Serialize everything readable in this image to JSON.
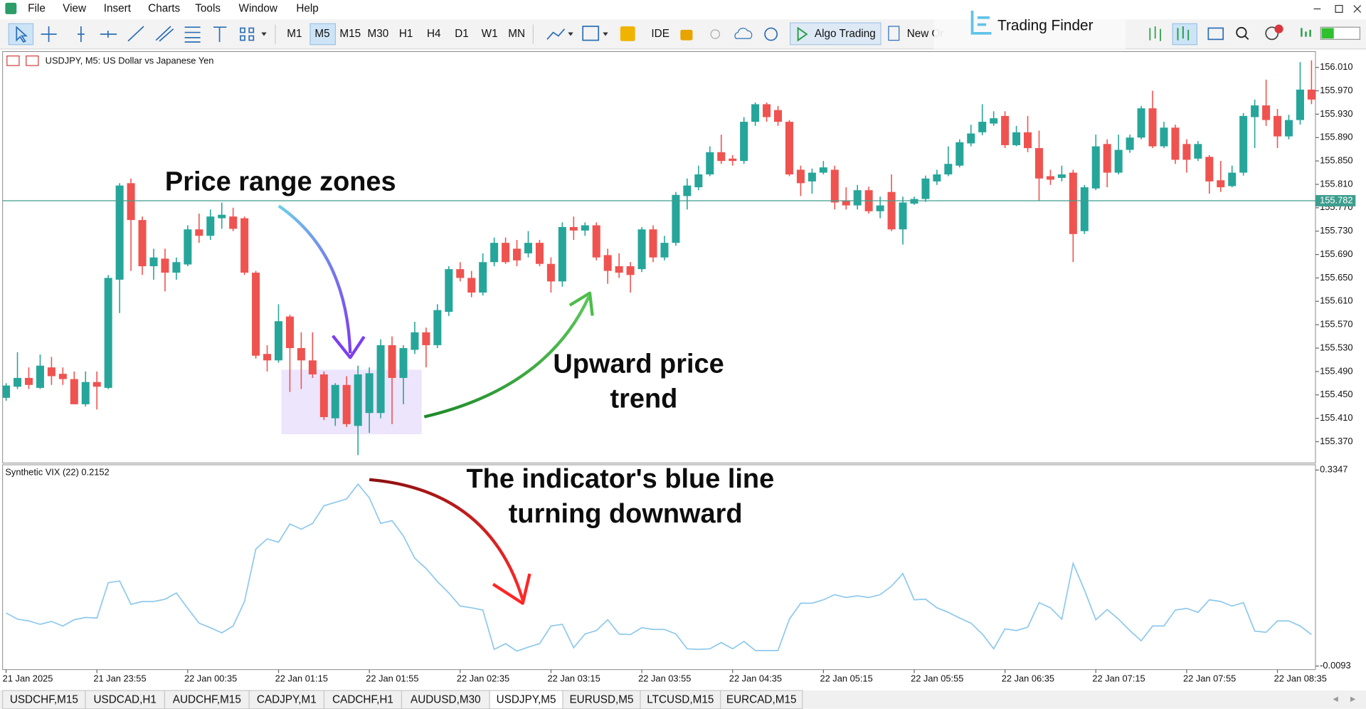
{
  "menu": [
    "File",
    "View",
    "Insert",
    "Charts",
    "Tools",
    "Window",
    "Help"
  ],
  "toolbar": {
    "timeframes": [
      "M1",
      "M5",
      "M15",
      "M30",
      "H1",
      "H4",
      "D1",
      "W1",
      "MN"
    ],
    "ide": "IDE",
    "algo_trading": "Algo Trading",
    "new_order": "New Or"
  },
  "watermark": "Trading Finder",
  "tabs": [
    "USDCHF,M15",
    "USDCAD,H1",
    "AUDCHF,M15",
    "CADJPY,M1",
    "CADCHF,H1",
    "AUDUSD,M30",
    "USDJPY,M5",
    "EURUSD,M5",
    "LTCUSD,M15",
    "EURCAD,M15"
  ],
  "annotations": {
    "price_range": "Price range zones",
    "upward": [
      "Upward price",
      "trend"
    ],
    "indicator": [
      "The indicator's blue line",
      "turning downward"
    ]
  },
  "chart_data": [
    {
      "type": "candlestick",
      "title": "USDJPY, M5:  US Dollar vs Japanese Yen",
      "categories": [
        "21 Jan 2025",
        null,
        null,
        null,
        null,
        null,
        null,
        null,
        "21 Jan 23:55",
        null,
        null,
        null,
        null,
        null,
        null,
        null,
        "22 Jan 00:35",
        null,
        null,
        null,
        null,
        null,
        null,
        null,
        "22 Jan 01:15",
        null,
        null,
        null,
        null,
        null,
        null,
        null,
        "22 Jan 01:55",
        null,
        null,
        null,
        null,
        null,
        null,
        null,
        "22 Jan 02:35",
        null,
        null,
        null,
        null,
        null,
        null,
        null,
        "22 Jan 03:15",
        null,
        null,
        null,
        null,
        null,
        null,
        null,
        "22 Jan 03:55",
        null,
        null,
        null,
        null,
        null,
        null,
        null,
        "22 Jan 04:35",
        null,
        null,
        null,
        null,
        null,
        null,
        null,
        "22 Jan 05:15",
        null,
        null,
        null,
        null,
        null,
        null,
        null,
        "22 Jan 05:55",
        null,
        null,
        null,
        null,
        null,
        null,
        null,
        "22 Jan 06:35",
        null,
        null,
        null,
        null,
        null,
        null,
        null,
        "22 Jan 07:15",
        null,
        null,
        null,
        null,
        null,
        null,
        null,
        "22 Jan 07:55",
        null,
        null,
        null,
        null,
        null,
        null,
        null,
        "22 Jan 08:35",
        null,
        null,
        null
      ],
      "open": [
        155.445,
        155.464,
        155.479,
        155.462,
        155.497,
        155.486,
        155.477,
        155.434,
        155.472,
        155.462,
        155.647,
        155.812,
        155.749,
        155.67,
        155.683,
        155.659,
        155.673,
        155.733,
        155.722,
        155.752,
        155.755,
        155.752,
        155.659,
        155.52,
        155.509,
        155.584,
        155.53,
        155.509,
        155.485,
        155.41,
        155.467,
        155.397,
        155.419,
        155.419,
        155.535,
        155.479,
        155.527,
        155.557,
        155.535,
        155.592,
        155.665,
        155.65,
        155.625,
        155.677,
        155.71,
        155.7,
        155.692,
        155.71,
        155.674,
        155.644,
        155.737,
        155.731,
        155.74,
        155.689,
        155.67,
        155.67,
        155.665,
        155.733,
        155.685,
        155.71,
        155.79,
        155.805,
        155.827,
        155.865,
        155.854,
        155.85,
        155.917,
        155.947,
        155.937,
        155.917,
        155.835,
        155.815,
        155.83,
        155.835,
        155.782,
        155.774,
        155.8,
        155.764,
        155.797,
        155.733,
        155.777,
        155.785,
        155.815,
        155.827,
        155.842,
        155.88,
        155.899,
        155.914,
        155.927,
        155.877,
        155.899,
        155.872,
        155.824,
        155.821,
        155.83,
        155.73,
        155.803,
        155.879,
        155.83,
        155.869,
        155.89,
        155.94,
        155.875,
        155.907,
        155.879,
        155.854,
        155.857,
        155.817,
        155.807,
        155.83,
        155.925,
        155.945,
        155.927,
        155.892,
        155.92,
        155.972
      ],
      "high": [
        155.47,
        155.523,
        155.497,
        155.519,
        155.515,
        155.497,
        155.49,
        155.49,
        155.49,
        155.655,
        155.812,
        155.82,
        155.755,
        155.7,
        155.7,
        155.685,
        155.74,
        155.76,
        155.767,
        155.779,
        155.77,
        155.755,
        155.662,
        155.535,
        155.605,
        155.587,
        155.557,
        155.557,
        155.49,
        155.47,
        155.482,
        155.5,
        155.497,
        155.545,
        155.55,
        155.535,
        155.575,
        155.565,
        155.605,
        155.67,
        155.677,
        155.662,
        155.692,
        155.719,
        155.719,
        155.715,
        155.73,
        155.715,
        155.685,
        155.745,
        155.755,
        155.745,
        155.745,
        155.7,
        155.692,
        155.677,
        155.737,
        155.74,
        155.722,
        155.797,
        155.82,
        155.842,
        155.875,
        155.895,
        155.86,
        155.925,
        155.95,
        155.95,
        155.944,
        155.92,
        155.842,
        155.837,
        155.85,
        155.842,
        155.805,
        155.809,
        155.806,
        155.789,
        155.827,
        155.789,
        155.789,
        155.825,
        155.835,
        155.875,
        155.887,
        155.912,
        155.947,
        155.935,
        155.935,
        155.91,
        155.927,
        155.902,
        155.835,
        155.842,
        155.835,
        155.809,
        155.895,
        155.887,
        155.895,
        155.895,
        155.944,
        155.97,
        155.917,
        155.912,
        155.887,
        155.884,
        155.86,
        155.85,
        155.842,
        155.932,
        155.955,
        155.989,
        155.939,
        155.929,
        156.019,
        156.022
      ],
      "low": [
        155.44,
        155.46,
        155.46,
        155.46,
        155.467,
        155.467,
        155.434,
        155.43,
        155.425,
        155.46,
        155.59,
        155.662,
        155.655,
        155.647,
        155.627,
        155.647,
        155.67,
        155.71,
        155.715,
        155.734,
        155.73,
        155.655,
        155.512,
        155.49,
        155.505,
        155.455,
        155.46,
        155.479,
        155.407,
        155.397,
        155.395,
        155.347,
        155.385,
        155.41,
        155.4,
        155.434,
        155.52,
        155.497,
        155.53,
        155.585,
        155.644,
        155.617,
        155.62,
        155.67,
        155.674,
        155.67,
        155.685,
        155.67,
        155.625,
        155.635,
        155.715,
        155.722,
        155.68,
        155.64,
        155.65,
        155.625,
        155.66,
        155.677,
        155.68,
        155.705,
        155.767,
        155.8,
        155.824,
        155.845,
        155.842,
        155.845,
        155.91,
        155.917,
        155.91,
        155.824,
        155.79,
        155.794,
        155.827,
        155.767,
        155.767,
        155.767,
        155.76,
        155.752,
        155.73,
        155.707,
        155.775,
        155.78,
        155.809,
        155.824,
        155.839,
        155.875,
        155.894,
        155.91,
        155.872,
        155.875,
        155.865,
        155.782,
        155.809,
        155.815,
        155.677,
        155.725,
        155.8,
        155.805,
        155.827,
        155.864,
        155.887,
        155.872,
        155.872,
        155.845,
        155.83,
        155.85,
        155.794,
        155.797,
        155.805,
        155.825,
        155.872,
        155.91,
        155.872,
        155.887,
        155.912,
        155.947
      ],
      "close": [
        155.466,
        155.479,
        155.467,
        155.5,
        155.482,
        155.477,
        155.434,
        155.472,
        155.464,
        155.65,
        155.808,
        155.749,
        155.67,
        155.685,
        155.659,
        155.677,
        155.733,
        155.722,
        155.755,
        155.758,
        155.734,
        155.659,
        155.517,
        155.509,
        155.576,
        155.53,
        155.509,
        155.485,
        155.412,
        155.467,
        155.4,
        155.485,
        155.487,
        155.535,
        155.479,
        155.53,
        155.557,
        155.535,
        155.595,
        155.665,
        155.65,
        155.625,
        155.677,
        155.71,
        155.677,
        155.68,
        155.71,
        155.674,
        155.644,
        155.737,
        155.731,
        155.74,
        155.685,
        155.662,
        155.659,
        155.655,
        155.733,
        155.685,
        155.71,
        155.792,
        155.808,
        155.827,
        155.865,
        155.85,
        155.85,
        155.917,
        155.947,
        155.925,
        155.917,
        155.827,
        155.812,
        155.83,
        155.839,
        155.779,
        155.774,
        155.8,
        155.764,
        155.774,
        155.733,
        155.779,
        155.785,
        155.82,
        155.827,
        155.845,
        155.882,
        155.897,
        155.917,
        155.923,
        155.877,
        155.899,
        155.872,
        155.82,
        155.818,
        155.827,
        155.725,
        155.805,
        155.875,
        155.83,
        155.869,
        155.89,
        155.94,
        155.875,
        155.907,
        155.852,
        155.852,
        155.879,
        155.815,
        155.805,
        155.83,
        155.927,
        155.945,
        155.92,
        155.892,
        155.92,
        155.972,
        155.955
      ],
      "up_color": "#26a69a",
      "down_color": "#ef5350",
      "ylim": [
        155.3335,
        156.037
      ],
      "yticks": [
        {
          "value": 156.01,
          "label": "156.010"
        },
        {
          "value": 155.97,
          "label": "155.970"
        },
        {
          "value": 155.93,
          "label": "155.930"
        },
        {
          "value": 155.89,
          "label": "155.890"
        },
        {
          "value": 155.85,
          "label": "155.850"
        },
        {
          "value": 155.81,
          "label": "155.810"
        },
        {
          "value": 155.77,
          "label": "155.770"
        },
        {
          "value": 155.73,
          "label": "155.730"
        },
        {
          "value": 155.69,
          "label": "155.690"
        },
        {
          "value": 155.65,
          "label": "155.650"
        },
        {
          "value": 155.61,
          "label": "155.610"
        },
        {
          "value": 155.57,
          "label": "155.570"
        },
        {
          "value": 155.53,
          "label": "155.530"
        },
        {
          "value": 155.49,
          "label": "155.490"
        },
        {
          "value": 155.45,
          "label": "155.450"
        },
        {
          "value": 155.41,
          "label": "155.410"
        },
        {
          "value": 155.37,
          "label": "155.370"
        }
      ],
      "hline": {
        "value": 155.782,
        "color": "#3d9e8f"
      }
    },
    {
      "type": "line",
      "title": "Synthetic VIX (22) 0.2152",
      "color": "#8ec9ec",
      "values": [
        0.084,
        0.073,
        0.07,
        0.064,
        0.069,
        0.061,
        0.072,
        0.076,
        0.075,
        0.137,
        0.14,
        0.099,
        0.104,
        0.104,
        0.108,
        0.119,
        0.092,
        0.066,
        0.058,
        0.049,
        0.061,
        0.104,
        0.196,
        0.214,
        0.208,
        0.24,
        0.231,
        0.241,
        0.272,
        0.278,
        0.284,
        0.31,
        0.286,
        0.241,
        0.246,
        0.219,
        0.18,
        0.162,
        0.139,
        0.119,
        0.096,
        0.093,
        0.089,
        0.02,
        0.03,
        0.017,
        0.024,
        0.03,
        0.061,
        0.064,
        0.023,
        0.047,
        0.053,
        0.072,
        0.047,
        0.046,
        0.058,
        0.055,
        0.055,
        0.047,
        0.021,
        0.02,
        0.021,
        0.032,
        0.021,
        0.034,
        0.018,
        0.018,
        0.018,
        0.073,
        0.101,
        0.101,
        0.107,
        0.116,
        0.111,
        0.114,
        0.111,
        0.116,
        0.131,
        0.153,
        0.107,
        0.108,
        0.093,
        0.085,
        0.075,
        0.066,
        0.047,
        0.021,
        0.056,
        0.053,
        0.059,
        0.102,
        0.093,
        0.073,
        0.171,
        0.124,
        0.072,
        0.09,
        0.073,
        0.053,
        0.035,
        0.061,
        0.061,
        0.089,
        0.092,
        0.085,
        0.107,
        0.104,
        0.096,
        0.102,
        0.052,
        0.05,
        0.07,
        0.07,
        0.061,
        0.046
      ],
      "ylim": [
        -0.0155,
        0.344
      ],
      "yticks": [
        0.3347,
        -0.0093
      ]
    }
  ]
}
